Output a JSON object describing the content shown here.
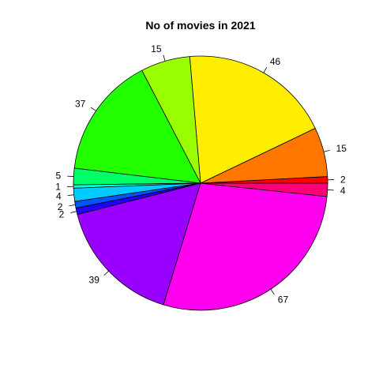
{
  "chart_data": {
    "type": "pie",
    "title": "No of movies in 2021",
    "direction": "counterclockwise",
    "start": "3 o'clock",
    "slices": [
      {
        "label": "2",
        "value": 2,
        "color": "#FF0000"
      },
      {
        "label": "15",
        "value": 15,
        "color": "#FF7700"
      },
      {
        "label": "46",
        "value": 46,
        "color": "#FFEE00"
      },
      {
        "label": "15",
        "value": 15,
        "color": "#99FF00"
      },
      {
        "label": "37",
        "value": 37,
        "color": "#22FF00"
      },
      {
        "label": "5",
        "value": 5,
        "color": "#00FF66"
      },
      {
        "label": "1",
        "value": 1,
        "color": "#00FFDD"
      },
      {
        "label": "4",
        "value": 4,
        "color": "#00CCFF"
      },
      {
        "label": "2",
        "value": 2,
        "color": "#0055FF"
      },
      {
        "label": "2",
        "value": 2,
        "color": "#2200FF"
      },
      {
        "label": "39",
        "value": 39,
        "color": "#9900FF"
      },
      {
        "label": "67",
        "value": 67,
        "color": "#FF00EE"
      },
      {
        "label": "4",
        "value": 4,
        "color": "#FF0077"
      }
    ]
  }
}
